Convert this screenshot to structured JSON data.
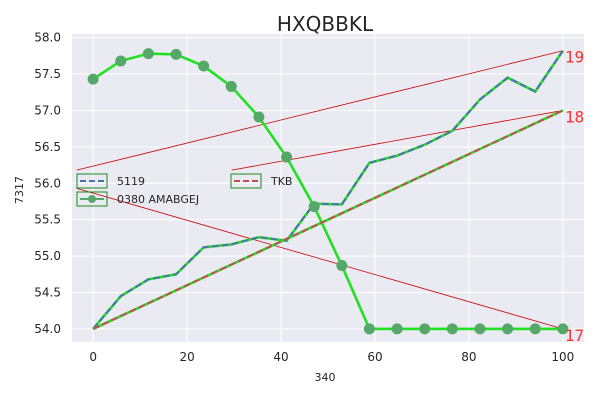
{
  "chart_data": {
    "type": "line",
    "title": "HXQBBKL",
    "xlabel": "340",
    "ylabel": "7317",
    "xlim": [
      -4.5,
      104.5
    ],
    "ylim": [
      53.82,
      58.05
    ],
    "x_ticks": [
      "0",
      "20",
      "40",
      "60",
      "80",
      "100"
    ],
    "y_ticks": [
      "54.0",
      "54.5",
      "55.0",
      "55.5",
      "56.0",
      "56.5",
      "57.0",
      "57.5",
      "58.0"
    ],
    "grid": true,
    "background": "#eaeaf2",
    "series": [
      {
        "name": "5119",
        "color": "#4c72b0",
        "style": "dashed",
        "x": [
          0,
          5.88,
          11.76,
          17.65,
          23.53,
          29.41,
          35.29,
          41.18,
          47.06,
          52.94,
          58.82,
          64.71,
          70.59,
          76.47,
          82.35,
          88.24,
          94.12,
          100
        ],
        "y": [
          54.0,
          54.45,
          54.68,
          54.75,
          55.12,
          55.16,
          55.26,
          55.21,
          55.72,
          55.71,
          56.28,
          56.38,
          56.53,
          56.72,
          57.15,
          57.45,
          57.26,
          57.82
        ]
      },
      {
        "name": "0380 AMABGEJ",
        "color": "#55a868",
        "style": "solid",
        "marker": "circle",
        "x": [
          0,
          5.88,
          11.76,
          17.65,
          23.53,
          29.41,
          35.29,
          41.18,
          47.06,
          52.94,
          58.82,
          64.71,
          70.59,
          76.47,
          82.35,
          88.24,
          94.12,
          100
        ],
        "y": [
          57.43,
          57.68,
          57.78,
          57.77,
          57.61,
          57.33,
          56.91,
          56.36,
          55.68,
          54.87,
          54.0,
          54.0,
          54.0,
          54.0,
          54.0,
          54.0,
          54.0,
          54.0
        ]
      },
      {
        "name": "TKB",
        "color": "#c44e52",
        "style": "dashed",
        "x": [
          0,
          100
        ],
        "y": [
          54.0,
          57.0
        ]
      }
    ],
    "overlay_color": "#22e022",
    "legends": [
      {
        "entries": [
          0,
          1
        ],
        "placement": "center-left"
      },
      {
        "entries": [
          2
        ],
        "placement": "center"
      }
    ],
    "annotations": [
      {
        "text": "19",
        "x": 100,
        "y": 57.82,
        "from_x": -3.5,
        "from_y": 56.18,
        "color": "#ff3333",
        "line_color": "#cc0000"
      },
      {
        "text": "18",
        "x": 100,
        "y": 57.0,
        "from_x": 29.5,
        "from_y": 56.18,
        "color": "#ff3333",
        "line_color": "#cc0000"
      },
      {
        "text": "17",
        "x": 100,
        "y": 54.0,
        "from_x": -3.5,
        "from_y": 55.93,
        "color": "#ff3333",
        "line_color": "#cc0000"
      }
    ]
  }
}
